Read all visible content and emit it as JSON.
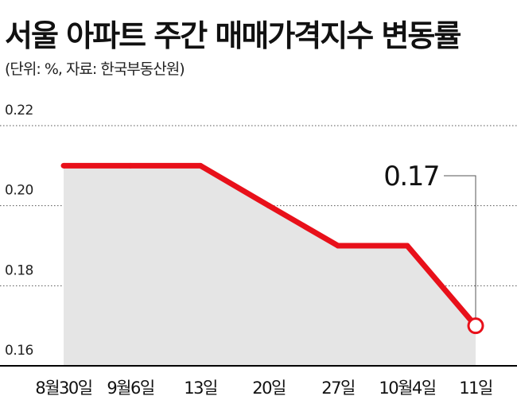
{
  "chart_data": {
    "type": "line",
    "title": "서울 아파트 주간 매매가격지수 변동률",
    "subtitle": "(단위: %, 자료: 한국부동산원)",
    "xlabel": "",
    "ylabel": "",
    "categories": [
      "8월30일",
      "9월6일",
      "13일",
      "20일",
      "27일",
      "10월4일",
      "11일"
    ],
    "values": [
      0.21,
      0.21,
      0.21,
      0.2,
      0.19,
      0.19,
      0.17
    ],
    "ylim": [
      0.16,
      0.22
    ],
    "yticks": [
      "0.22",
      "0.20",
      "0.18",
      "0.16"
    ],
    "grid": true,
    "annotation": {
      "text": "0.17",
      "index": 6
    },
    "colors": {
      "line": "#e8101a",
      "area": "#e5e5e5",
      "grid": "#555555",
      "axis": "#000000"
    }
  }
}
